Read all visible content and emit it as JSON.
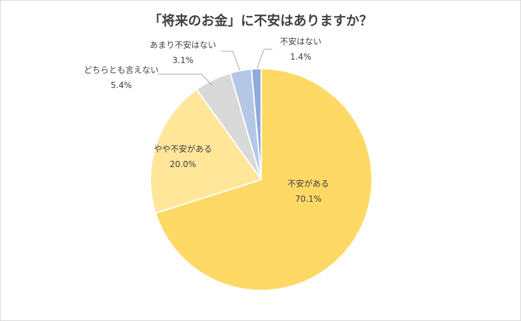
{
  "chart_data": {
    "type": "pie",
    "title": "「将来のお金」に不安はありますか？",
    "slices": [
      {
        "label": "不安がある",
        "value": 70.1,
        "display": "70.1%",
        "color": "#ffd966"
      },
      {
        "label": "やや不安がある",
        "value": 20.0,
        "display": "20.0%",
        "color": "#ffe699"
      },
      {
        "label": "どちらとも言えない",
        "value": 5.4,
        "display": "5.4%",
        "color": "#d9d9d9"
      },
      {
        "label": "あまり不安はない",
        "value": 3.1,
        "display": "3.1%",
        "color": "#b4c7e7"
      },
      {
        "label": "不安はない",
        "value": 1.4,
        "display": "1.4%",
        "color": "#8faadc"
      }
    ],
    "start_angle_deg": 0,
    "direction": "clockwise",
    "legend": "none"
  }
}
